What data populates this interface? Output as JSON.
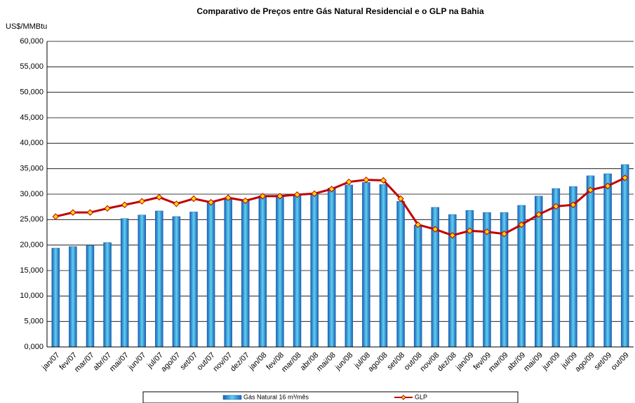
{
  "chart_data": {
    "type": "bar-line",
    "title": "Comparativo de Preços entre Gás Natural Residencial e o GLP na Bahia",
    "y_label": "US$/MMBtu",
    "categories": [
      "jan/07",
      "fev/07",
      "mar/07",
      "abr/07",
      "mai/07",
      "jun/07",
      "jul/07",
      "ago/07",
      "set/07",
      "out/07",
      "nov/07",
      "dez/07",
      "jan/08",
      "fev/08",
      "mar/08",
      "abr/08",
      "mai/08",
      "jun/08",
      "jul/08",
      "ago/08",
      "set/08",
      "out/08",
      "nov/08",
      "dez/08",
      "jan/09",
      "fev/09",
      "mar/09",
      "abr/09",
      "mai/09",
      "jun/09",
      "jul/09",
      "ago/09",
      "set/09",
      "out/09"
    ],
    "series": [
      {
        "name": "Gás Natural 16 m³/mês",
        "type": "bar",
        "color": "#1a5fb4",
        "values": [
          19.4,
          19.7,
          19.9,
          20.5,
          25.2,
          25.9,
          26.7,
          25.6,
          26.5,
          28.6,
          29.0,
          28.7,
          29.7,
          29.8,
          29.9,
          30.1,
          31.2,
          31.8,
          32.3,
          31.9,
          28.6,
          23.9,
          27.4,
          26.0,
          26.8,
          26.4,
          26.4,
          27.8,
          29.6,
          31.1,
          31.5,
          33.6,
          34.0,
          35.8
        ]
      },
      {
        "name": "GLP",
        "type": "line",
        "color": "#c00000",
        "values": [
          25.6,
          26.4,
          26.4,
          27.2,
          27.9,
          28.6,
          29.4,
          28.1,
          29.1,
          28.4,
          29.3,
          28.7,
          29.6,
          29.6,
          29.9,
          30.1,
          31.0,
          32.4,
          32.8,
          32.7,
          29.1,
          24.0,
          23.1,
          21.9,
          22.8,
          22.6,
          22.2,
          24.0,
          26.0,
          27.6,
          27.9,
          30.8,
          31.6,
          33.2
        ]
      }
    ],
    "ylim": [
      0,
      60
    ],
    "yticks": [
      {
        "value": 0,
        "label": "0,000"
      },
      {
        "value": 5,
        "label": "5,000"
      },
      {
        "value": 10,
        "label": "10,000"
      },
      {
        "value": 15,
        "label": "15,000"
      },
      {
        "value": 20,
        "label": "20,000"
      },
      {
        "value": 25,
        "label": "25,000"
      },
      {
        "value": 30,
        "label": "30,000"
      },
      {
        "value": 35,
        "label": "35,000"
      },
      {
        "value": 40,
        "label": "40,000"
      },
      {
        "value": 45,
        "label": "45,000"
      },
      {
        "value": 50,
        "label": "50,000"
      },
      {
        "value": 55,
        "label": "55,000"
      },
      {
        "value": 60,
        "label": "60,000"
      }
    ],
    "grid": true
  }
}
